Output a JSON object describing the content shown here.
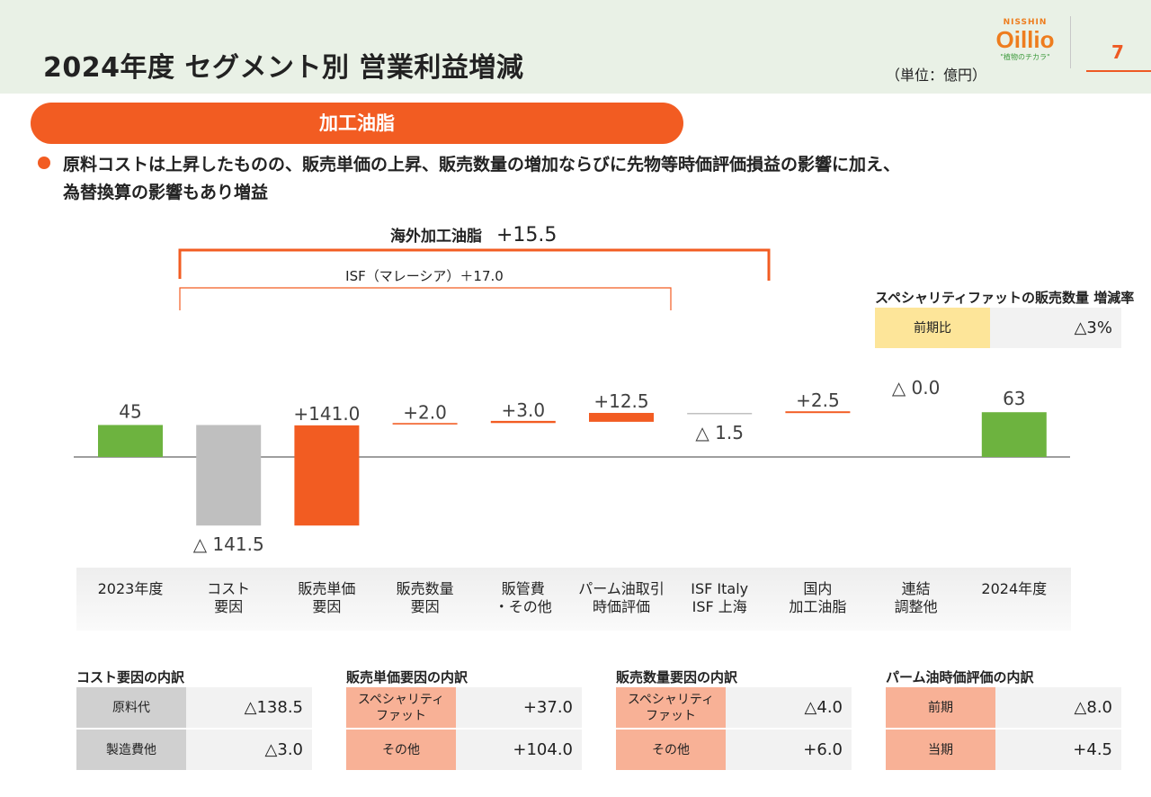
{
  "header": {
    "title": "2024年度 セグメント別 営業利益増減",
    "unit": "（単位：億円）",
    "page": "7",
    "logo": {
      "top": "NISSHIN",
      "main": "Oillio",
      "sub": "\"植物のチカラ\""
    }
  },
  "segment_label": "加工油脂",
  "bullet": "原料コストは上昇したものの、販売単価の上昇、販売数量の増加ならびに先物等時価評価損益の影響に加え、\n為替換算の影響もあり増益",
  "brackets": {
    "overseas_label": "海外加工油脂",
    "overseas_value": "+15.5",
    "isf_label": "ISF（マレーシア）＋17.0"
  },
  "chart_data": {
    "type": "bar",
    "subtype": "waterfall",
    "categories": [
      "2023年度",
      "コスト\n要因",
      "販売単価\n要因",
      "販売数量\n要因",
      "販管費\n・その他",
      "パーム油取引\n時価評価",
      "ISF Italy\nISF 上海",
      "国内\n加工油脂",
      "連結\n調整他",
      "2024年度"
    ],
    "values": [
      45,
      -141.5,
      141.0,
      2.0,
      3.0,
      12.5,
      -1.5,
      2.5,
      0.0,
      63
    ],
    "kinds": [
      "total",
      "delta",
      "delta",
      "delta",
      "delta",
      "delta",
      "delta",
      "delta",
      "delta",
      "total"
    ],
    "labels": [
      "45",
      "△ 141.5",
      "+141.0",
      "+2.0",
      "+3.0",
      "+12.5",
      "△ 1.5",
      "+2.5",
      "△ 0.0",
      "63"
    ],
    "colors": {
      "total": "#6db33f",
      "decrease": "#bfbfbf",
      "increase": "#f25c22"
    }
  },
  "specialty_table": {
    "title": "スペシャリティファットの販売数量 増減率",
    "rows": [
      {
        "label": "前期比",
        "value": "△3%"
      }
    ]
  },
  "breakdowns": [
    {
      "title": "コスト要因の内訳",
      "rows": [
        {
          "label": "原料代",
          "value": "△138.5"
        },
        {
          "label": "製造費他",
          "value": "△3.0"
        }
      ]
    },
    {
      "title": "販売単価要因の内訳",
      "rows": [
        {
          "label": "スペシャリティ\nファット",
          "value": "+37.0"
        },
        {
          "label": "その他",
          "value": "+104.0"
        }
      ]
    },
    {
      "title": "販売数量要因の内訳",
      "rows": [
        {
          "label": "スペシャリティ\nファット",
          "value": "△4.0"
        },
        {
          "label": "その他",
          "value": "+6.0"
        }
      ]
    },
    {
      "title": "パーム油時価評価の内訳",
      "rows": [
        {
          "label": "前期",
          "value": "△8.0"
        },
        {
          "label": "当期",
          "value": "+4.5"
        }
      ]
    }
  ]
}
